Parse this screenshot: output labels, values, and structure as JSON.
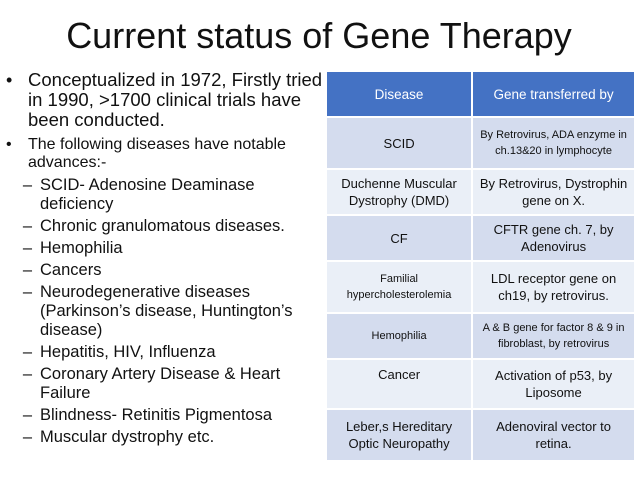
{
  "title": "Current status of Gene Therapy",
  "bullets": [
    {
      "text": "Conceptualized in 1972, Firstly tried in 1990, >1700 clinical trials have been conducted."
    },
    {
      "text": "The following diseases have notable advances:-"
    }
  ],
  "sub_bullets": [
    "SCID- Adenosine Deaminase deficiency",
    "Chronic granulomatous diseases.",
    "Hemophilia",
    "Cancers",
    "Neurodegenerative diseases (Parkinson’s disease, Huntington’s disease)",
    "Hepatitis, HIV, Influenza",
    "Coronary Artery Disease & Heart Failure",
    "Blindness- Retinitis Pigmentosa",
    "Muscular dystrophy etc."
  ],
  "table": {
    "headers": [
      "Disease",
      "Gene transferred by"
    ],
    "rows": [
      [
        "SCID",
        "By Retrovirus, ADA enzyme in ch.13&20 in lymphocyte"
      ],
      [
        "Duchenne Muscular Dystrophy (DMD)",
        "By Retrovirus, Dystrophin gene on X."
      ],
      [
        "CF",
        "CFTR gene ch. 7, by Adenovirus"
      ],
      [
        "Familial hypercholesterolemia",
        "LDL receptor gene on ch19, by retrovirus."
      ],
      [
        "Hemophilia",
        "A & B gene for factor 8 & 9 in fibroblast, by retrovirus"
      ],
      [
        "Cancer",
        "Activation of p53, by Liposome"
      ],
      [
        "Leber,s Hereditary Optic Neuropathy",
        "Adenoviral vector to retina."
      ]
    ]
  },
  "colors": {
    "header_bg": "#4472c4",
    "row_dark": "#d4dcee",
    "row_light": "#eaeff7"
  }
}
